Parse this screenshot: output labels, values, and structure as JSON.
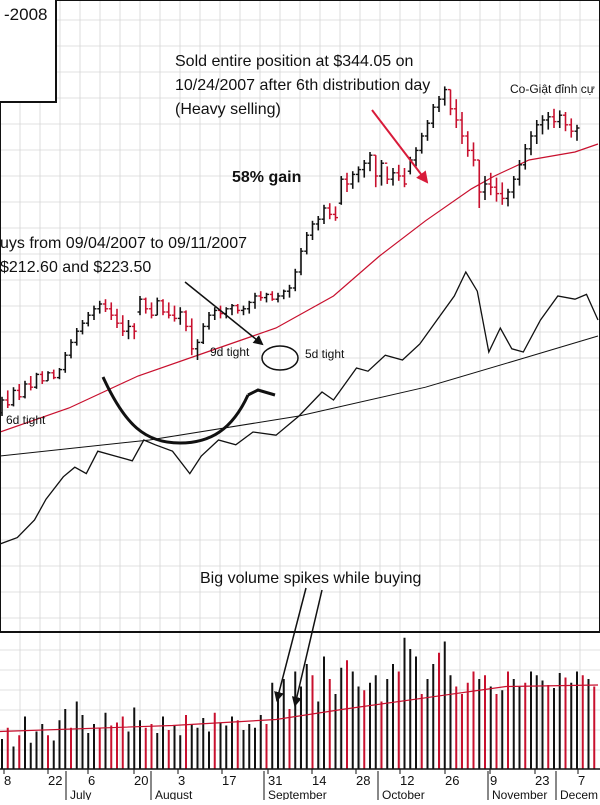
{
  "chart_data": {
    "type": "bar",
    "title_fragment": "-2008",
    "colors": {
      "up_bar": "#111111",
      "down_bar": "#c8102e",
      "ma_short": "#c8102e",
      "ma_long": "#111111",
      "rs_line": "#111111",
      "grid": "#d6d6d6",
      "annotation_arrow": "#d81b3a"
    },
    "grid": true,
    "x_day_labels": [
      "8",
      "22",
      "6",
      "20",
      "3",
      "17",
      "31",
      "14",
      "28",
      "12",
      "26",
      "9",
      "23",
      "7"
    ],
    "x_month_labels": [
      "July",
      "August",
      "September",
      "October",
      "November",
      "Decem"
    ],
    "annotations": {
      "sell": [
        "Sold entire position at $344.05 on",
        "10/24/2007 after 6th distribution day",
        "(Heavy selling)"
      ],
      "corner": "Co-Giật đỉnh cự",
      "gain": "58% gain",
      "buys": [
        "uys from 09/04/2007 to 09/11/2007",
        "$212.60 and $223.50"
      ],
      "tight_6d": "6d tight",
      "tight_9d": "9d tight",
      "tight_5d": "5d tight",
      "volume": "Big volume spikes while buying"
    },
    "price_bars": [
      {
        "h": 152,
        "l": 140,
        "o": 142,
        "c": 150
      },
      {
        "h": 156,
        "l": 145,
        "o": 150,
        "c": 147
      },
      {
        "h": 158,
        "l": 146,
        "o": 147,
        "c": 156
      },
      {
        "h": 160,
        "l": 150,
        "o": 156,
        "c": 152
      },
      {
        "h": 162,
        "l": 151,
        "o": 152,
        "c": 160
      },
      {
        "h": 165,
        "l": 156,
        "o": 160,
        "c": 158
      },
      {
        "h": 167,
        "l": 157,
        "o": 158,
        "c": 166
      },
      {
        "h": 168,
        "l": 160,
        "o": 166,
        "c": 162
      },
      {
        "h": 168,
        "l": 162,
        "o": 162,
        "c": 167
      },
      {
        "h": 169,
        "l": 163,
        "o": 167,
        "c": 164
      },
      {
        "h": 170,
        "l": 163,
        "o": 164,
        "c": 169
      },
      {
        "h": 180,
        "l": 167,
        "o": 169,
        "c": 178
      },
      {
        "h": 188,
        "l": 176,
        "o": 178,
        "c": 186
      },
      {
        "h": 195,
        "l": 184,
        "o": 186,
        "c": 193
      },
      {
        "h": 200,
        "l": 191,
        "o": 193,
        "c": 198
      },
      {
        "h": 205,
        "l": 196,
        "o": 198,
        "c": 203
      },
      {
        "h": 209,
        "l": 200,
        "o": 203,
        "c": 207
      },
      {
        "h": 212,
        "l": 204,
        "o": 207,
        "c": 210
      },
      {
        "h": 213,
        "l": 205,
        "o": 210,
        "c": 207
      },
      {
        "h": 211,
        "l": 200,
        "o": 207,
        "c": 203
      },
      {
        "h": 207,
        "l": 195,
        "o": 203,
        "c": 198
      },
      {
        "h": 203,
        "l": 190,
        "o": 198,
        "c": 193
      },
      {
        "h": 200,
        "l": 188,
        "o": 193,
        "c": 196
      },
      {
        "h": 198,
        "l": 188,
        "o": 196,
        "c": 193
      },
      {
        "h": 215,
        "l": 203,
        "o": 205,
        "c": 213
      },
      {
        "h": 214,
        "l": 204,
        "o": 213,
        "c": 207
      },
      {
        "h": 211,
        "l": 201,
        "o": 207,
        "c": 203
      },
      {
        "h": 214,
        "l": 203,
        "o": 203,
        "c": 212
      },
      {
        "h": 213,
        "l": 203,
        "o": 212,
        "c": 205
      },
      {
        "h": 211,
        "l": 201,
        "o": 205,
        "c": 203
      },
      {
        "h": 209,
        "l": 199,
        "o": 203,
        "c": 201
      },
      {
        "h": 208,
        "l": 197,
        "o": 201,
        "c": 205
      },
      {
        "h": 206,
        "l": 193,
        "o": 205,
        "c": 196
      },
      {
        "h": 201,
        "l": 178,
        "o": 196,
        "c": 182
      },
      {
        "h": 188,
        "l": 175,
        "o": 182,
        "c": 186
      },
      {
        "h": 198,
        "l": 185,
        "o": 186,
        "c": 196
      },
      {
        "h": 205,
        "l": 194,
        "o": 196,
        "c": 203
      },
      {
        "h": 208,
        "l": 200,
        "o": 203,
        "c": 206
      },
      {
        "h": 209,
        "l": 201,
        "o": 206,
        "c": 204
      },
      {
        "h": 208,
        "l": 201,
        "o": 204,
        "c": 207
      },
      {
        "h": 210,
        "l": 203,
        "o": 207,
        "c": 209
      },
      {
        "h": 210,
        "l": 204,
        "o": 209,
        "c": 206
      },
      {
        "h": 209,
        "l": 203,
        "o": 206,
        "c": 207
      },
      {
        "h": 212,
        "l": 204,
        "o": 207,
        "c": 211
      },
      {
        "h": 217,
        "l": 207,
        "o": 211,
        "c": 215
      },
      {
        "h": 218,
        "l": 212,
        "o": 215,
        "c": 214
      },
      {
        "h": 217,
        "l": 211,
        "o": 214,
        "c": 216
      },
      {
        "h": 218,
        "l": 212,
        "o": 216,
        "c": 213
      },
      {
        "h": 217,
        "l": 211,
        "o": 213,
        "c": 215
      },
      {
        "h": 219,
        "l": 213,
        "o": 215,
        "c": 218
      },
      {
        "h": 222,
        "l": 214,
        "o": 218,
        "c": 220
      },
      {
        "h": 232,
        "l": 218,
        "o": 220,
        "c": 230
      },
      {
        "h": 245,
        "l": 228,
        "o": 230,
        "c": 243
      },
      {
        "h": 255,
        "l": 241,
        "o": 243,
        "c": 253
      },
      {
        "h": 262,
        "l": 250,
        "o": 253,
        "c": 260
      },
      {
        "h": 265,
        "l": 256,
        "o": 260,
        "c": 263
      },
      {
        "h": 272,
        "l": 260,
        "o": 263,
        "c": 270
      },
      {
        "h": 273,
        "l": 263,
        "o": 270,
        "c": 266
      },
      {
        "h": 271,
        "l": 262,
        "o": 266,
        "c": 264
      },
      {
        "h": 290,
        "l": 272,
        "o": 273,
        "c": 288
      },
      {
        "h": 292,
        "l": 280,
        "o": 288,
        "c": 285
      },
      {
        "h": 293,
        "l": 282,
        "o": 285,
        "c": 291
      },
      {
        "h": 296,
        "l": 286,
        "o": 291,
        "c": 294
      },
      {
        "h": 300,
        "l": 289,
        "o": 294,
        "c": 298
      },
      {
        "h": 305,
        "l": 293,
        "o": 298,
        "c": 303
      },
      {
        "h": 303,
        "l": 283,
        "o": 303,
        "c": 290
      },
      {
        "h": 300,
        "l": 284,
        "o": 290,
        "c": 298
      },
      {
        "h": 296,
        "l": 285,
        "o": 298,
        "c": 288
      },
      {
        "h": 295,
        "l": 284,
        "o": 288,
        "c": 292
      },
      {
        "h": 297,
        "l": 287,
        "o": 292,
        "c": 290
      },
      {
        "h": 295,
        "l": 283,
        "o": 290,
        "c": 285
      },
      {
        "h": 302,
        "l": 291,
        "o": 293,
        "c": 300
      },
      {
        "h": 308,
        "l": 296,
        "o": 300,
        "c": 306
      },
      {
        "h": 317,
        "l": 304,
        "o": 306,
        "c": 315
      },
      {
        "h": 325,
        "l": 312,
        "o": 315,
        "c": 323
      },
      {
        "h": 335,
        "l": 320,
        "o": 323,
        "c": 333
      },
      {
        "h": 340,
        "l": 330,
        "o": 333,
        "c": 338
      },
      {
        "h": 346,
        "l": 334,
        "o": 338,
        "c": 344
      },
      {
        "h": 344,
        "l": 328,
        "o": 344,
        "c": 332
      },
      {
        "h": 338,
        "l": 320,
        "o": 332,
        "c": 325
      },
      {
        "h": 330,
        "l": 310,
        "o": 325,
        "c": 315
      },
      {
        "h": 318,
        "l": 302,
        "o": 315,
        "c": 306
      },
      {
        "h": 311,
        "l": 296,
        "o": 306,
        "c": 300
      },
      {
        "h": 300,
        "l": 270,
        "o": 300,
        "c": 280
      },
      {
        "h": 290,
        "l": 275,
        "o": 280,
        "c": 285
      },
      {
        "h": 292,
        "l": 278,
        "o": 285,
        "c": 283
      },
      {
        "h": 289,
        "l": 274,
        "o": 283,
        "c": 279
      },
      {
        "h": 286,
        "l": 272,
        "o": 279,
        "c": 276
      },
      {
        "h": 282,
        "l": 271,
        "o": 276,
        "c": 280
      },
      {
        "h": 290,
        "l": 276,
        "o": 280,
        "c": 288
      },
      {
        "h": 300,
        "l": 284,
        "o": 288,
        "c": 297
      },
      {
        "h": 310,
        "l": 294,
        "o": 297,
        "c": 307
      },
      {
        "h": 318,
        "l": 303,
        "o": 307,
        "c": 315
      },
      {
        "h": 325,
        "l": 310,
        "o": 315,
        "c": 322
      },
      {
        "h": 328,
        "l": 316,
        "o": 322,
        "c": 325
      },
      {
        "h": 330,
        "l": 319,
        "o": 325,
        "c": 327
      },
      {
        "h": 332,
        "l": 320,
        "o": 327,
        "c": 324
      },
      {
        "h": 331,
        "l": 320,
        "o": 324,
        "c": 328
      },
      {
        "h": 330,
        "l": 318,
        "o": 328,
        "c": 322
      },
      {
        "h": 326,
        "l": 314,
        "o": 322,
        "c": 318
      },
      {
        "h": 322,
        "l": 312,
        "o": 318,
        "c": 320
      }
    ],
    "ma_short": [
      {
        "i": 0,
        "v": 130
      },
      {
        "i": 12,
        "v": 145
      },
      {
        "i": 24,
        "v": 165
      },
      {
        "i": 36,
        "v": 180
      },
      {
        "i": 48,
        "v": 195
      },
      {
        "i": 58,
        "v": 215
      },
      {
        "i": 66,
        "v": 240
      },
      {
        "i": 74,
        "v": 262
      },
      {
        "i": 82,
        "v": 282
      },
      {
        "i": 86,
        "v": 290
      },
      {
        "i": 92,
        "v": 300
      },
      {
        "i": 100,
        "v": 305
      },
      {
        "i": 104,
        "v": 310
      }
    ],
    "ma_long": [
      {
        "i": 0,
        "v": 115
      },
      {
        "i": 26,
        "v": 125
      },
      {
        "i": 52,
        "v": 140
      },
      {
        "i": 74,
        "v": 158
      },
      {
        "i": 90,
        "v": 175
      },
      {
        "i": 104,
        "v": 190
      }
    ],
    "rs_line": [
      {
        "i": 0,
        "v": 60
      },
      {
        "i": 3,
        "v": 64
      },
      {
        "i": 6,
        "v": 75
      },
      {
        "i": 8,
        "v": 88
      },
      {
        "i": 11,
        "v": 102
      },
      {
        "i": 13,
        "v": 108
      },
      {
        "i": 15,
        "v": 104
      },
      {
        "i": 17,
        "v": 118
      },
      {
        "i": 20,
        "v": 115
      },
      {
        "i": 23,
        "v": 112
      },
      {
        "i": 25,
        "v": 125
      },
      {
        "i": 27,
        "v": 122
      },
      {
        "i": 30,
        "v": 118
      },
      {
        "i": 33,
        "v": 104
      },
      {
        "i": 35,
        "v": 115
      },
      {
        "i": 38,
        "v": 125
      },
      {
        "i": 41,
        "v": 122
      },
      {
        "i": 44,
        "v": 130
      },
      {
        "i": 48,
        "v": 128
      },
      {
        "i": 52,
        "v": 140
      },
      {
        "i": 56,
        "v": 155
      },
      {
        "i": 58,
        "v": 150
      },
      {
        "i": 62,
        "v": 170
      },
      {
        "i": 64,
        "v": 168
      },
      {
        "i": 67,
        "v": 178
      },
      {
        "i": 70,
        "v": 175
      },
      {
        "i": 73,
        "v": 185
      },
      {
        "i": 76,
        "v": 200
      },
      {
        "i": 79,
        "v": 215
      },
      {
        "i": 81,
        "v": 230
      },
      {
        "i": 83,
        "v": 218
      },
      {
        "i": 85,
        "v": 180
      },
      {
        "i": 87,
        "v": 195
      },
      {
        "i": 89,
        "v": 182
      },
      {
        "i": 91,
        "v": 180
      },
      {
        "i": 94,
        "v": 200
      },
      {
        "i": 97,
        "v": 215
      },
      {
        "i": 100,
        "v": 213
      },
      {
        "i": 102,
        "v": 216
      },
      {
        "i": 104,
        "v": 200
      }
    ],
    "volume": [
      40,
      55,
      30,
      45,
      70,
      35,
      50,
      60,
      45,
      38,
      65,
      80,
      55,
      90,
      72,
      48,
      60,
      55,
      75,
      58,
      62,
      70,
      50,
      82,
      65,
      55,
      60,
      48,
      70,
      52,
      58,
      45,
      72,
      60,
      55,
      68,
      50,
      75,
      62,
      58,
      70,
      65,
      52,
      60,
      55,
      72,
      60,
      115,
      100,
      120,
      80,
      130,
      110,
      140,
      125,
      90,
      150,
      120,
      100,
      135,
      145,
      130,
      110,
      105,
      115,
      125,
      90,
      120,
      140,
      130,
      175,
      160,
      150,
      100,
      120,
      140,
      155,
      170,
      125,
      110,
      100,
      115,
      130,
      120,
      125,
      110,
      100,
      105,
      130,
      120,
      110,
      115,
      130,
      125,
      118,
      112,
      108,
      128,
      122,
      115,
      130,
      125,
      120,
      110
    ],
    "volume_down": [
      1,
      3,
      8,
      12,
      17,
      19,
      20,
      21,
      25,
      26,
      29,
      32,
      37,
      41,
      46,
      50,
      54,
      57,
      60,
      63,
      66,
      69,
      73,
      76,
      79,
      80,
      81,
      82,
      84,
      86,
      88,
      91,
      95,
      98,
      101,
      103
    ],
    "volume_ma": [
      {
        "i": 0,
        "v": 50
      },
      {
        "i": 30,
        "v": 58
      },
      {
        "i": 48,
        "v": 66
      },
      {
        "i": 60,
        "v": 80
      },
      {
        "i": 74,
        "v": 95
      },
      {
        "i": 88,
        "v": 110
      },
      {
        "i": 104,
        "v": 112
      }
    ]
  }
}
